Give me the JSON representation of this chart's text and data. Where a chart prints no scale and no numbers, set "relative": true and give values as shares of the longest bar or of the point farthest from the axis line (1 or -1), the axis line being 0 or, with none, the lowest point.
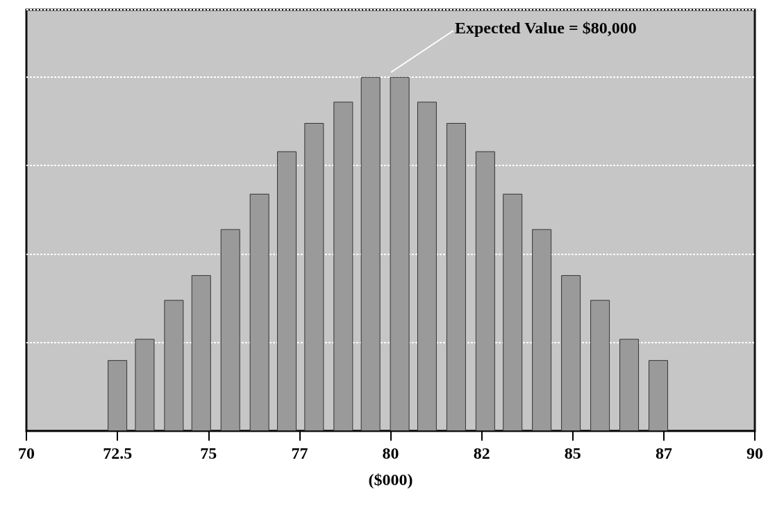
{
  "chart_data": {
    "type": "bar",
    "relative": true,
    "xlabel": "($000)",
    "x": [
      72.5,
      73.25,
      74.05,
      74.8,
      75.6,
      76.4,
      77.15,
      77.9,
      78.7,
      79.45,
      80.25,
      81.0,
      81.8,
      82.6,
      83.35,
      84.15,
      84.95,
      85.75,
      86.55,
      87.35
    ],
    "values": [
      0.2,
      0.26,
      0.37,
      0.44,
      0.57,
      0.67,
      0.79,
      0.87,
      0.93,
      1,
      1,
      0.93,
      0.87,
      0.79,
      0.67,
      0.57,
      0.44,
      0.37,
      0.26,
      0.2
    ],
    "color": "#9a9a9a",
    "xlim": [
      70,
      90
    ],
    "xticks": [
      70,
      72.5,
      75,
      {
        "value": 77.5,
        "label": "77"
      },
      80,
      {
        "value": 82.5,
        "label": "82"
      },
      85,
      {
        "value": 87.5,
        "label": "87"
      },
      90
    ],
    "grid": "y",
    "annotations": [
      "Expected Value = $80,000"
    ]
  }
}
